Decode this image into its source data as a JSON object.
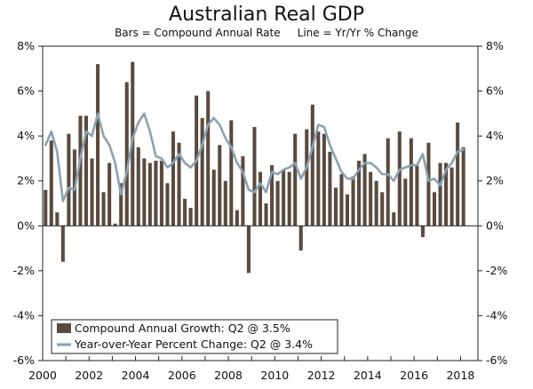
{
  "chart_data": {
    "type": "bar+line",
    "title": "Australian Real GDP",
    "subtitle": "Bars = Compound Annual Rate     Line = Yr/Yr % Change",
    "x_range": [
      2000.0,
      2018.75
    ],
    "ylim": [
      -6,
      8
    ],
    "y_ticks": [
      -6,
      -4,
      -2,
      0,
      2,
      4,
      6,
      8
    ],
    "y_tick_labels": [
      "-6%",
      "-4%",
      "-2%",
      "0%",
      "2%",
      "4%",
      "6%",
      "8%"
    ],
    "x_ticks": [
      2000,
      2002,
      2004,
      2006,
      2008,
      2010,
      2012,
      2014,
      2016,
      2018
    ],
    "x_tick_labels": [
      "2000",
      "2002",
      "2004",
      "2006",
      "2008",
      "2010",
      "2012",
      "2014",
      "2016",
      "2018"
    ],
    "colors": {
      "bars": "#5a4a3e",
      "line": "#8aa2b2",
      "axis": "#222222"
    },
    "series": [
      {
        "name": "Compound Annual Growth: Q2 @ 3.5%",
        "kind": "bar",
        "start_year": 2000,
        "start_quarter": 1,
        "values": [
          1.6,
          3.8,
          0.6,
          -1.6,
          4.1,
          3.4,
          4.9,
          4.9,
          3.0,
          7.2,
          1.5,
          2.8,
          0.1,
          1.9,
          6.4,
          7.3,
          3.5,
          3.0,
          2.8,
          2.9,
          2.9,
          1.9,
          4.2,
          3.7,
          1.2,
          0.8,
          5.8,
          4.8,
          6.0,
          2.5,
          3.6,
          2.0,
          4.7,
          0.7,
          3.1,
          -2.1,
          4.4,
          2.4,
          1.0,
          2.7,
          2.0,
          2.5,
          2.4,
          4.1,
          -1.1,
          4.3,
          5.4,
          4.2,
          4.1,
          3.3,
          1.7,
          2.3,
          1.4,
          2.2,
          2.9,
          3.2,
          2.4,
          2.0,
          1.5,
          3.9,
          0.6,
          4.2,
          2.1,
          3.9,
          2.7,
          -0.5,
          3.7,
          1.5,
          2.8,
          2.8,
          2.6,
          4.6,
          3.5
        ]
      },
      {
        "name": "Year-over-Year Percent Change: Q2 @ 3.4%",
        "kind": "line",
        "start_year": 2000,
        "start_quarter": 1,
        "values": [
          3.6,
          4.2,
          3.3,
          1.1,
          1.7,
          1.6,
          3.0,
          4.2,
          4.0,
          5.0,
          4.0,
          3.6,
          2.8,
          1.4,
          2.4,
          3.9,
          4.6,
          5.0,
          4.2,
          3.1,
          3.0,
          2.6,
          2.8,
          3.2,
          2.8,
          2.6,
          2.9,
          3.6,
          4.5,
          4.8,
          4.5,
          3.9,
          3.5,
          2.8,
          2.4,
          1.6,
          1.5,
          1.9,
          1.5,
          2.4,
          2.3,
          2.5,
          2.6,
          2.8,
          2.1,
          2.6,
          3.5,
          4.5,
          4.4,
          3.6,
          3.0,
          2.4,
          2.1,
          2.1,
          2.5,
          2.8,
          2.8,
          2.6,
          2.3,
          2.3,
          2.0,
          2.5,
          2.6,
          2.7,
          2.7,
          3.2,
          2.0,
          2.1,
          1.8,
          2.5,
          2.8,
          3.3,
          3.4
        ]
      }
    ]
  }
}
